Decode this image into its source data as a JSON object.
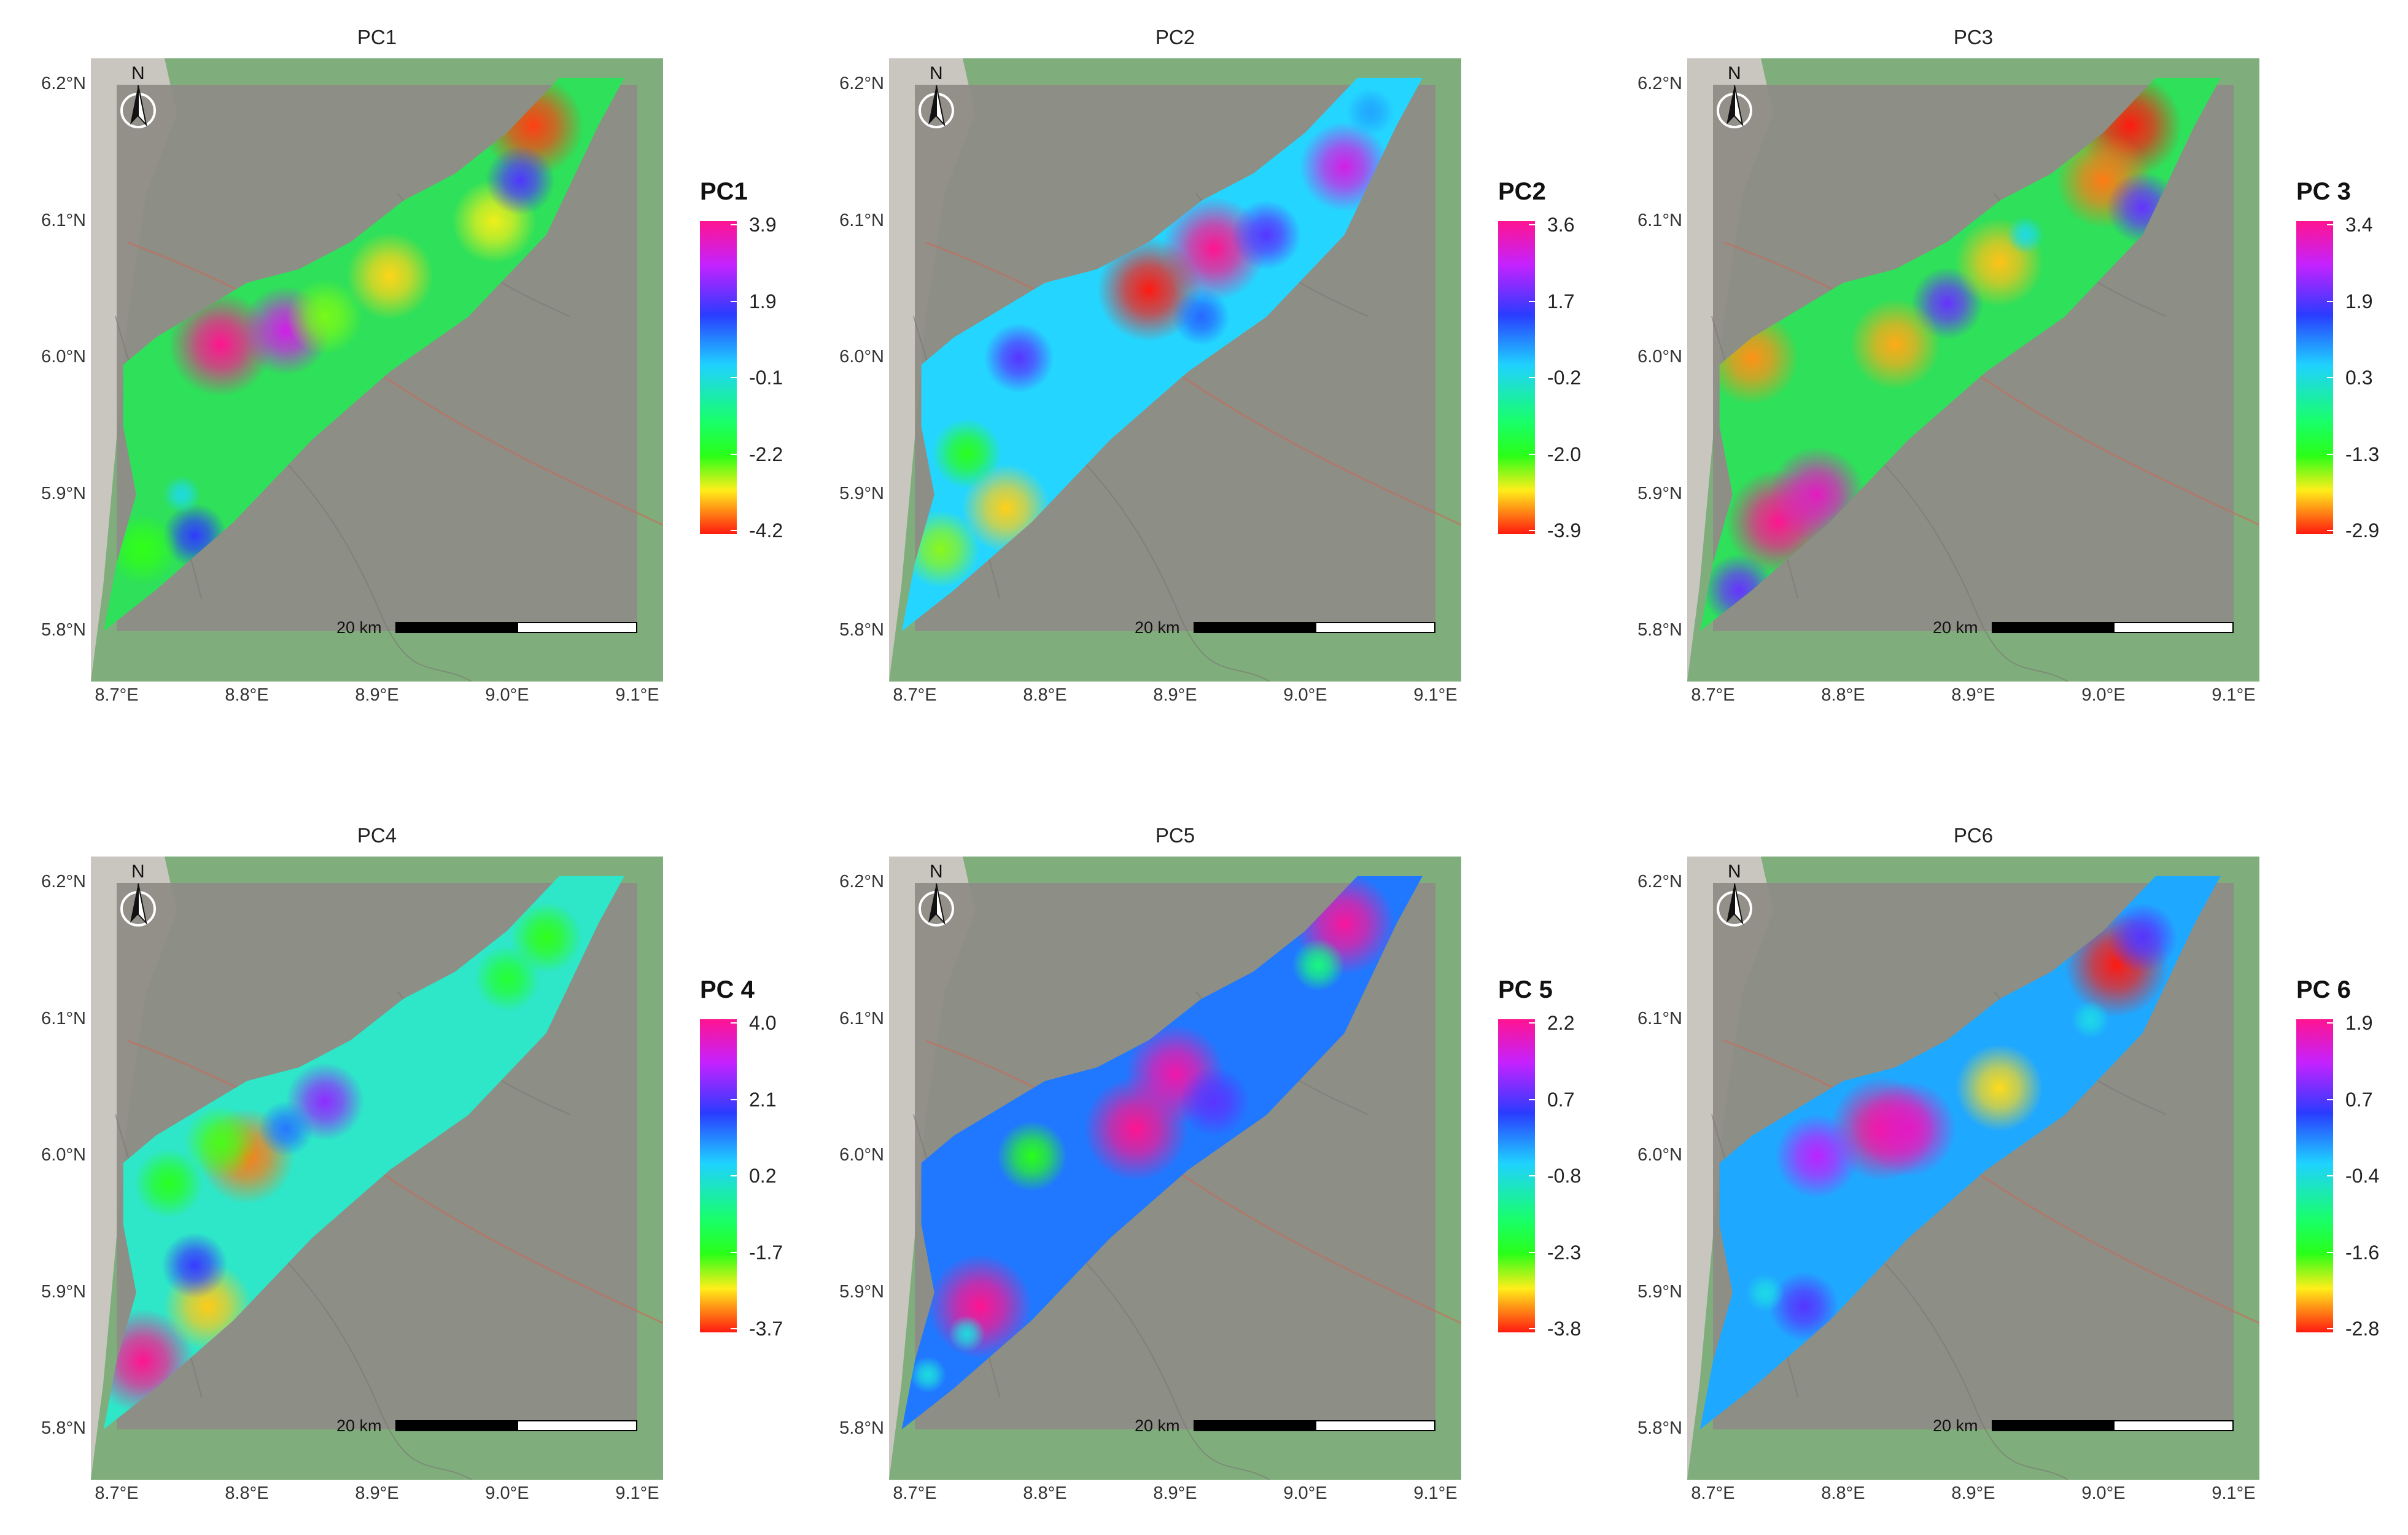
{
  "common": {
    "lat_labels": [
      "6.2°N",
      "6.1°N",
      "6.0°N",
      "5.9°N",
      "5.8°N"
    ],
    "lon_labels": [
      "8.7°E",
      "8.8°E",
      "8.9°E",
      "9.0°E",
      "9.1°E"
    ],
    "scale_label": "20 km",
    "north_label": "N",
    "colors": {
      "map_green": "#7fae7c",
      "study_area_overlay": "#8e8b85",
      "road": "#c86a5a"
    },
    "north_arrow_icon": "north-arrow-icon"
  },
  "panels": [
    {
      "title": "PC1",
      "legend_title": "PC1",
      "ticks": [
        "3.9",
        "1.9",
        "-0.1",
        "-2.2",
        "-4.2"
      ],
      "base_color": "#2ee05a",
      "hotspots": [
        {
          "lon": 9.02,
          "lat": 6.17,
          "value": -4.0
        },
        {
          "lon": 8.78,
          "lat": 6.01,
          "value": 3.9
        },
        {
          "lon": 8.83,
          "lat": 6.02,
          "value": 3.0
        },
        {
          "lon": 8.76,
          "lat": 5.87,
          "value": 1.5
        },
        {
          "lon": 8.91,
          "lat": 6.06,
          "value": -3.2
        },
        {
          "lon": 8.99,
          "lat": 6.1,
          "value": -3.0
        },
        {
          "lon": 8.72,
          "lat": 5.86,
          "value": -2.2
        },
        {
          "lon": 9.01,
          "lat": 6.13,
          "value": 1.8
        },
        {
          "lon": 8.75,
          "lat": 5.9,
          "value": -0.1
        },
        {
          "lon": 8.86,
          "lat": 6.03,
          "value": -2.5
        }
      ]
    },
    {
      "title": "PC2",
      "legend_title": "PC2",
      "ticks": [
        "3.6",
        "1.7",
        "-0.2",
        "-2.0",
        "-3.9"
      ],
      "base_color": "#24d6ff",
      "hotspots": [
        {
          "lon": 8.93,
          "lat": 6.08,
          "value": 3.6
        },
        {
          "lon": 9.03,
          "lat": 6.14,
          "value": 2.8
        },
        {
          "lon": 8.88,
          "lat": 6.05,
          "value": -3.9
        },
        {
          "lon": 8.77,
          "lat": 5.89,
          "value": -3.0
        },
        {
          "lon": 8.72,
          "lat": 5.86,
          "value": -2.4
        },
        {
          "lon": 8.97,
          "lat": 6.09,
          "value": 1.7
        },
        {
          "lon": 8.92,
          "lat": 6.03,
          "value": 1.0
        },
        {
          "lon": 8.78,
          "lat": 6.0,
          "value": 1.7
        },
        {
          "lon": 8.74,
          "lat": 5.93,
          "value": -2.0
        },
        {
          "lon": 9.05,
          "lat": 6.18,
          "value": 0.5
        }
      ]
    },
    {
      "title": "PC3",
      "legend_title": "PC 3",
      "ticks": [
        "3.4",
        "1.9",
        "0.3",
        "-1.3",
        "-2.9"
      ],
      "base_color": "#2ee05a",
      "hotspots": [
        {
          "lon": 9.02,
          "lat": 6.17,
          "value": -2.9
        },
        {
          "lon": 8.75,
          "lat": 5.88,
          "value": 3.4
        },
        {
          "lon": 8.78,
          "lat": 5.9,
          "value": 3.0
        },
        {
          "lon": 8.72,
          "lat": 5.83,
          "value": 1.9
        },
        {
          "lon": 8.88,
          "lat": 6.04,
          "value": 1.9
        },
        {
          "lon": 9.0,
          "lat": 6.13,
          "value": -2.5
        },
        {
          "lon": 9.03,
          "lat": 6.11,
          "value": 1.9
        },
        {
          "lon": 8.92,
          "lat": 6.07,
          "value": -2.2
        },
        {
          "lon": 8.73,
          "lat": 6.0,
          "value": -2.4
        },
        {
          "lon": 8.84,
          "lat": 6.01,
          "value": -2.3
        },
        {
          "lon": 8.94,
          "lat": 6.09,
          "value": 0.3
        }
      ]
    },
    {
      "title": "PC4",
      "legend_title": "PC 4",
      "ticks": [
        "4.0",
        "2.1",
        "0.2",
        "-1.7",
        "-3.7"
      ],
      "base_color": "#2ee6c8",
      "hotspots": [
        {
          "lon": 8.72,
          "lat": 5.85,
          "value": 4.0
        },
        {
          "lon": 8.86,
          "lat": 6.04,
          "value": 2.5
        },
        {
          "lon": 8.77,
          "lat": 5.89,
          "value": -2.8
        },
        {
          "lon": 8.76,
          "lat": 5.92,
          "value": 1.8
        },
        {
          "lon": 8.8,
          "lat": 6.0,
          "value": -3.2
        },
        {
          "lon": 8.74,
          "lat": 5.98,
          "value": -1.7
        },
        {
          "lon": 9.0,
          "lat": 6.13,
          "value": -1.5
        },
        {
          "lon": 9.03,
          "lat": 6.16,
          "value": -1.8
        },
        {
          "lon": 8.83,
          "lat": 6.02,
          "value": 1.2
        },
        {
          "lon": 8.78,
          "lat": 6.01,
          "value": -1.9
        }
      ]
    },
    {
      "title": "PC5",
      "legend_title": "PC 5",
      "ticks": [
        "2.2",
        "0.7",
        "-0.8",
        "-2.3",
        "-3.8"
      ],
      "base_color": "#1f78ff",
      "hotspots": [
        {
          "lon": 8.87,
          "lat": 6.02,
          "value": 2.2
        },
        {
          "lon": 8.9,
          "lat": 6.06,
          "value": 2.0
        },
        {
          "lon": 8.75,
          "lat": 5.89,
          "value": 2.2
        },
        {
          "lon": 9.03,
          "lat": 6.17,
          "value": 2.1
        },
        {
          "lon": 9.01,
          "lat": 6.14,
          "value": -1.5
        },
        {
          "lon": 8.74,
          "lat": 5.87,
          "value": -0.8
        },
        {
          "lon": 8.79,
          "lat": 6.0,
          "value": -2.3
        },
        {
          "lon": 8.71,
          "lat": 5.84,
          "value": -0.8
        },
        {
          "lon": 8.93,
          "lat": 6.04,
          "value": 0.7
        }
      ]
    },
    {
      "title": "PC6",
      "legend_title": "PC 6",
      "ticks": [
        "1.9",
        "0.7",
        "-0.4",
        "-1.6",
        "-2.8"
      ],
      "base_color": "#1fa8ff",
      "hotspots": [
        {
          "lon": 8.83,
          "lat": 6.02,
          "value": 1.9
        },
        {
          "lon": 8.85,
          "lat": 6.02,
          "value": 1.6
        },
        {
          "lon": 8.77,
          "lat": 5.89,
          "value": 0.7
        },
        {
          "lon": 8.78,
          "lat": 6.0,
          "value": 1.2
        },
        {
          "lon": 9.01,
          "lat": 6.14,
          "value": -2.8
        },
        {
          "lon": 8.92,
          "lat": 6.05,
          "value": -2.2
        },
        {
          "lon": 8.99,
          "lat": 6.1,
          "value": -0.4
        },
        {
          "lon": 8.74,
          "lat": 5.9,
          "value": -0.4
        },
        {
          "lon": 9.03,
          "lat": 6.16,
          "value": 0.7
        }
      ]
    }
  ]
}
